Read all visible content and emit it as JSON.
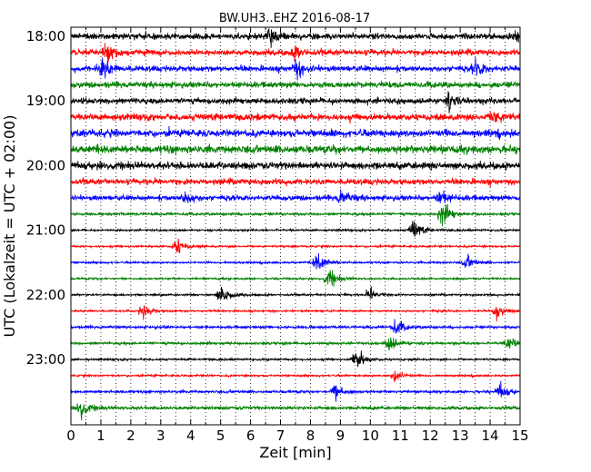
{
  "chart_data": {
    "type": "line",
    "title": "BW.UH3..EHZ 2016-08-17",
    "xlabel": "Zeit  [min]",
    "ylabel": "UTC (Lokalzeit = UTC + 02:00)",
    "xlim": [
      0,
      15
    ],
    "x_ticks": [
      "0",
      "0.5",
      "1",
      "1.5",
      "2",
      "2.5",
      "3",
      "3.5",
      "4",
      "4.5",
      "5",
      "5.5",
      "6",
      "6.5",
      "7",
      "7.5",
      "8",
      "8.5",
      "9",
      "9.5",
      "10",
      "10.5",
      "11",
      "11.5",
      "12",
      "12.5",
      "13",
      "13.5",
      "14",
      "14.5",
      "15"
    ],
    "y_ticks": [
      "18:00",
      "19:00",
      "20:00",
      "21:00",
      "22:00",
      "23:00"
    ],
    "grid": "vertical dotted at every x tick",
    "series_colors": [
      "#000000",
      "#ff0000",
      "#0000ff",
      "#008000"
    ],
    "rows": [
      {
        "start": "18:00",
        "color": "#000000",
        "amplitude": 0.45
      },
      {
        "start": "18:15",
        "color": "#ff0000",
        "amplitude": 0.45
      },
      {
        "start": "18:30",
        "color": "#0000ff",
        "amplitude": 0.45
      },
      {
        "start": "18:45",
        "color": "#008000",
        "amplitude": 0.45
      },
      {
        "start": "19:00",
        "color": "#000000",
        "amplitude": 0.45
      },
      {
        "start": "19:15",
        "color": "#ff0000",
        "amplitude": 0.5
      },
      {
        "start": "19:30",
        "color": "#0000ff",
        "amplitude": 0.55
      },
      {
        "start": "19:45",
        "color": "#008000",
        "amplitude": 0.6
      },
      {
        "start": "20:00",
        "color": "#000000",
        "amplitude": 0.55
      },
      {
        "start": "20:15",
        "color": "#ff0000",
        "amplitude": 0.45
      },
      {
        "start": "20:30",
        "color": "#0000ff",
        "amplitude": 0.4
      },
      {
        "start": "20:45",
        "color": "#008000",
        "amplitude": 0.2
      },
      {
        "start": "21:00",
        "color": "#000000",
        "amplitude": 0.15
      },
      {
        "start": "21:15",
        "color": "#ff0000",
        "amplitude": 0.15
      },
      {
        "start": "21:30",
        "color": "#0000ff",
        "amplitude": 0.15
      },
      {
        "start": "21:45",
        "color": "#008000",
        "amplitude": 0.15
      },
      {
        "start": "22:00",
        "color": "#000000",
        "amplitude": 0.15
      },
      {
        "start": "22:15",
        "color": "#ff0000",
        "amplitude": 0.15
      },
      {
        "start": "22:30",
        "color": "#0000ff",
        "amplitude": 0.2
      },
      {
        "start": "22:45",
        "color": "#008000",
        "amplitude": 0.2
      },
      {
        "start": "23:00",
        "color": "#000000",
        "amplitude": 0.15
      },
      {
        "start": "23:15",
        "color": "#ff0000",
        "amplitude": 0.15
      },
      {
        "start": "23:30",
        "color": "#0000ff",
        "amplitude": 0.2
      },
      {
        "start": "23:45",
        "color": "#008000",
        "amplitude": 0.25
      }
    ],
    "events": [
      {
        "row": 0,
        "t": 6.6,
        "amp": 1.6
      },
      {
        "row": 0,
        "t": 14.9,
        "amp": 1.3
      },
      {
        "row": 1,
        "t": 1.2,
        "amp": 1.7
      },
      {
        "row": 1,
        "t": 7.5,
        "amp": 1.3
      },
      {
        "row": 2,
        "t": 1.0,
        "amp": 2.0
      },
      {
        "row": 2,
        "t": 7.5,
        "amp": 1.6
      },
      {
        "row": 2,
        "t": 13.5,
        "amp": 1.2
      },
      {
        "row": 4,
        "t": 12.6,
        "amp": 1.3
      },
      {
        "row": 5,
        "t": 14.1,
        "amp": 1.3
      },
      {
        "row": 10,
        "t": 3.8,
        "amp": 1.3
      },
      {
        "row": 10,
        "t": 9.0,
        "amp": 1.3
      },
      {
        "row": 10,
        "t": 12.3,
        "amp": 1.3
      },
      {
        "row": 11,
        "t": 12.4,
        "amp": 2.2
      },
      {
        "row": 12,
        "t": 11.4,
        "amp": 2.0
      },
      {
        "row": 13,
        "t": 3.5,
        "amp": 1.5
      },
      {
        "row": 14,
        "t": 8.2,
        "amp": 2.0
      },
      {
        "row": 14,
        "t": 13.2,
        "amp": 1.3
      },
      {
        "row": 15,
        "t": 8.6,
        "amp": 1.8
      },
      {
        "row": 16,
        "t": 5.0,
        "amp": 1.8
      },
      {
        "row": 16,
        "t": 10.0,
        "amp": 1.4
      },
      {
        "row": 17,
        "t": 2.4,
        "amp": 1.4
      },
      {
        "row": 17,
        "t": 14.2,
        "amp": 1.3
      },
      {
        "row": 18,
        "t": 10.8,
        "amp": 1.5
      },
      {
        "row": 19,
        "t": 10.6,
        "amp": 1.5
      },
      {
        "row": 19,
        "t": 14.6,
        "amp": 1.3
      },
      {
        "row": 20,
        "t": 9.5,
        "amp": 2.2
      },
      {
        "row": 21,
        "t": 10.8,
        "amp": 1.2
      },
      {
        "row": 22,
        "t": 8.8,
        "amp": 1.6
      },
      {
        "row": 22,
        "t": 14.3,
        "amp": 1.4
      },
      {
        "row": 23,
        "t": 0.3,
        "amp": 1.8
      }
    ]
  }
}
